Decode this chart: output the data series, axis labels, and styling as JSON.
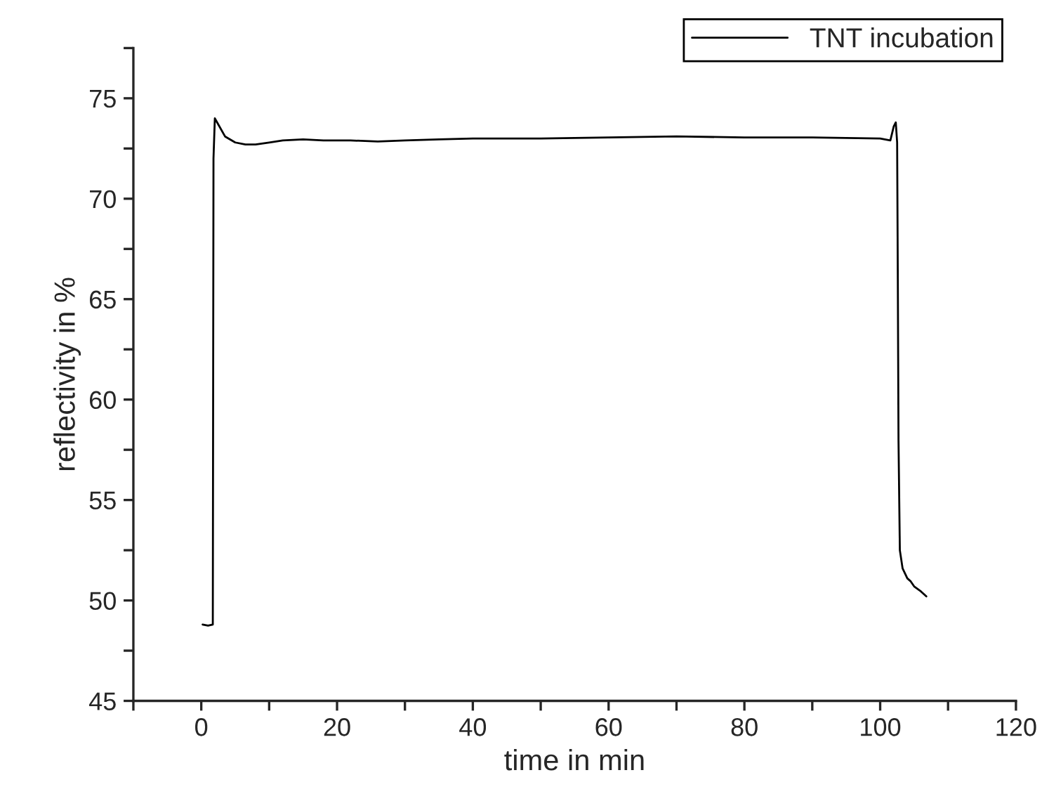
{
  "chart_data": {
    "type": "line",
    "xlabel": "time in min",
    "ylabel": "reflectivity in %",
    "series": [
      {
        "name": "TNT incubation",
        "color": "#000000",
        "x": [
          0.2,
          1.0,
          1.7,
          1.8,
          2.0,
          2.5,
          3.5,
          5,
          6.5,
          8,
          10,
          12,
          15,
          18,
          22,
          26,
          30,
          35,
          40,
          50,
          60,
          70,
          80,
          90,
          100,
          101.5,
          102.0,
          102.3,
          102.5,
          102.6,
          102.7,
          102.9,
          103.3,
          104,
          104.5,
          105,
          106,
          106.8
        ],
        "values": [
          48.8,
          48.75,
          48.8,
          72.0,
          74.0,
          73.7,
          73.1,
          72.8,
          72.7,
          72.7,
          72.8,
          72.9,
          72.95,
          72.9,
          72.9,
          72.85,
          72.9,
          72.95,
          73.0,
          73.0,
          73.05,
          73.1,
          73.05,
          73.05,
          73.0,
          72.9,
          73.6,
          73.8,
          72.8,
          66.0,
          58.0,
          52.5,
          51.6,
          51.1,
          50.95,
          50.7,
          50.45,
          50.2
        ]
      }
    ],
    "xlim": [
      -10,
      120
    ],
    "xticks": [
      {
        "value": -10,
        "label": null
      },
      0,
      {
        "value": 10,
        "label": null
      },
      20,
      {
        "value": 30,
        "label": null
      },
      40,
      {
        "value": 50,
        "label": null
      },
      60,
      {
        "value": 70,
        "label": null
      },
      80,
      {
        "value": 90,
        "label": null
      },
      100,
      {
        "value": 110,
        "label": null
      },
      120
    ],
    "ylim": [
      45,
      77.5
    ],
    "yticks": [
      45,
      {
        "value": 47.5,
        "label": null
      },
      50,
      {
        "value": 52.5,
        "label": null
      },
      55,
      {
        "value": 57.5,
        "label": null
      },
      60,
      {
        "value": 62.5,
        "label": null
      },
      65,
      {
        "value": 67.5,
        "label": null
      },
      70,
      {
        "value": 72.5,
        "label": null
      },
      75,
      {
        "value": 77.5,
        "label": null
      }
    ],
    "legend": "top right",
    "grid": false,
    "marker": "none",
    "line_style": "solid"
  }
}
